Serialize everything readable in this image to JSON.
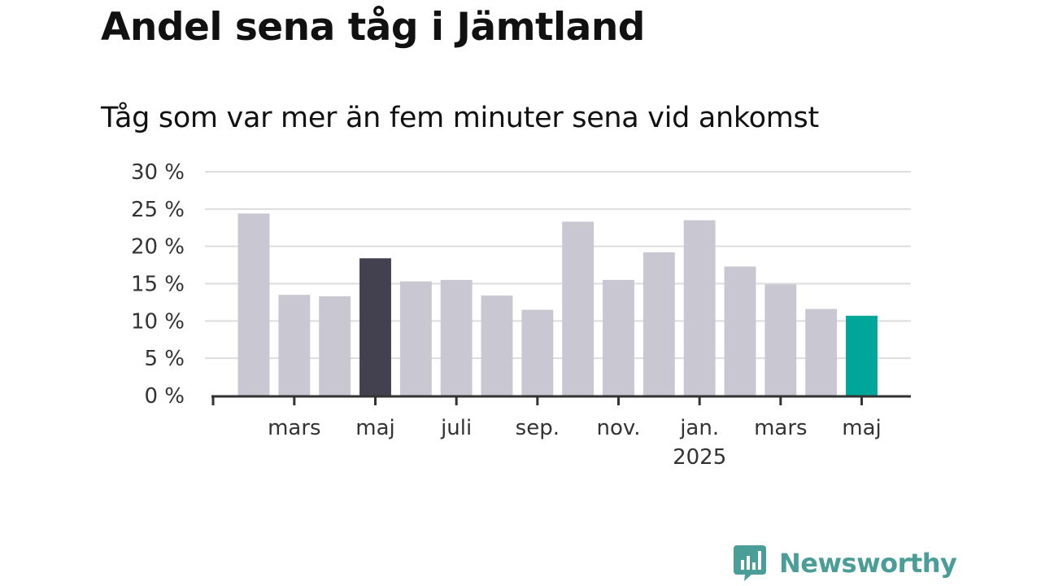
{
  "title": "Andel sena tåg i Jämtland",
  "subtitle": "Tåg som var mer än fem minuter sena vid ankomst",
  "logo": {
    "text": "Newsworthy",
    "color": "#4a9e97",
    "icon": "bar-chart-speech-bubble-icon"
  },
  "chart_data": {
    "type": "bar",
    "title": "Andel sena tåg i Jämtland",
    "subtitle": "Tåg som var mer än fem minuter sena vid ankomst",
    "xlabel": "",
    "ylabel": "",
    "ylim": [
      0,
      30
    ],
    "yticks": [
      0,
      5,
      10,
      15,
      20,
      25,
      30
    ],
    "ytick_labels": [
      "0 %",
      "5 %",
      "10 %",
      "15 %",
      "20 %",
      "25 %",
      "30 %"
    ],
    "ytick_suffix": " %",
    "grid": true,
    "legend": false,
    "categories": [
      "2024-02",
      "2024-03",
      "2024-04",
      "2024-05",
      "2024-06",
      "2024-07",
      "2024-08",
      "2024-09",
      "2024-10",
      "2024-11",
      "2024-12",
      "2025-01",
      "2025-02",
      "2025-03",
      "2025-04",
      "2025-05"
    ],
    "values": [
      24.4,
      13.5,
      13.3,
      18.4,
      15.3,
      15.5,
      13.4,
      11.5,
      23.3,
      15.5,
      19.2,
      23.5,
      17.3,
      14.9,
      11.6,
      10.7
    ],
    "xtick_labels": [
      {
        "category": "2024-03",
        "label": "mars"
      },
      {
        "category": "2024-05",
        "label": "maj"
      },
      {
        "category": "2024-07",
        "label": "juli"
      },
      {
        "category": "2024-09",
        "label": "sep."
      },
      {
        "category": "2024-11",
        "label": "nov."
      },
      {
        "category": "2025-01",
        "label": "jan.",
        "sublabel": "2025"
      },
      {
        "category": "2025-03",
        "label": "mars"
      },
      {
        "category": "2025-05",
        "label": "maj"
      }
    ],
    "colors": {
      "default": "#c8c7d2",
      "highlight": "#43414f",
      "latest": "#00a69a",
      "grid": "#dddddd",
      "axis": "#333333"
    },
    "highlighted": [
      "2024-05"
    ],
    "latest": [
      "2025-05"
    ]
  }
}
